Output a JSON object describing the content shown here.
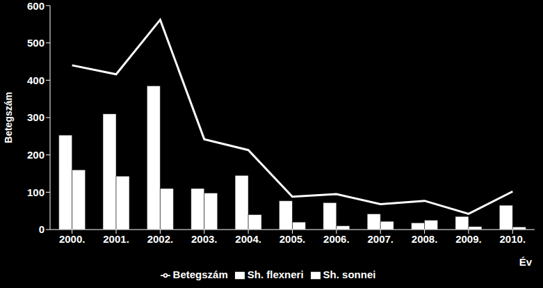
{
  "chart_data": {
    "type": "bar",
    "x_label": "Év",
    "y_label": "Betegszám",
    "categories": [
      "2000.",
      "2001.",
      "2002.",
      "2003.",
      "2004.",
      "2005.",
      "2006.",
      "2007.",
      "2008.",
      "2009.",
      "2010."
    ],
    "series": [
      {
        "name": "Sh. sonnei",
        "type": "bar",
        "color": "#ffffff",
        "values": [
          253,
          310,
          385,
          110,
          145,
          77,
          72,
          42,
          18,
          35,
          65
        ]
      },
      {
        "name": "Sh. flexneri",
        "type": "bar",
        "color": "#ffffff",
        "values": [
          160,
          143,
          110,
          98,
          40,
          20,
          10,
          22,
          25,
          8,
          7
        ]
      },
      {
        "name": "Betegszám",
        "type": "line",
        "color": "#ffffff",
        "marker": "none",
        "values": [
          440,
          416,
          562,
          242,
          213,
          88,
          95,
          68,
          77,
          42,
          102
        ]
      }
    ],
    "ylim": [
      0,
      600
    ],
    "yticks": [
      0,
      100,
      200,
      300,
      400,
      500,
      600
    ],
    "grid": false,
    "legend": "bottom"
  }
}
